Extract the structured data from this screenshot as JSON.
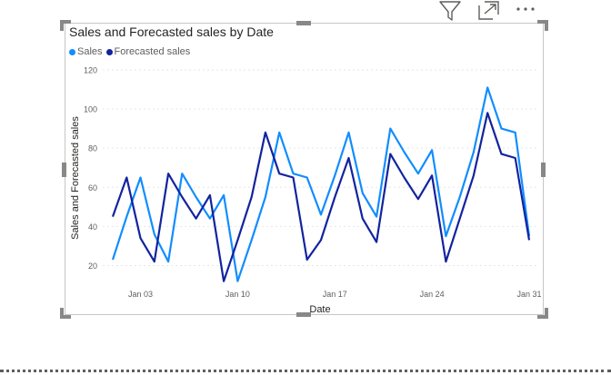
{
  "header": {
    "icons": [
      "filter-icon",
      "focus-mode-icon",
      "more-options-icon"
    ]
  },
  "colors": {
    "sales": "#118DFF",
    "forecast": "#12239E",
    "grid": "#e6e6e6",
    "axis_text": "#605e5c",
    "frame": "#c8c6c4",
    "handle": "#8a8886"
  },
  "chart_data": {
    "type": "line",
    "title": "Sales and Forecasted sales by Date",
    "xlabel": "Date",
    "ylabel": "Sales and Forecasted sales",
    "x": [
      "Jan 01",
      "Jan 02",
      "Jan 03",
      "Jan 04",
      "Jan 05",
      "Jan 06",
      "Jan 07",
      "Jan 08",
      "Jan 09",
      "Jan 10",
      "Jan 11",
      "Jan 12",
      "Jan 13",
      "Jan 14",
      "Jan 15",
      "Jan 16",
      "Jan 17",
      "Jan 18",
      "Jan 19",
      "Jan 20",
      "Jan 21",
      "Jan 22",
      "Jan 23",
      "Jan 24",
      "Jan 25",
      "Jan 26",
      "Jan 27",
      "Jan 28",
      "Jan 29",
      "Jan 30",
      "Jan 31"
    ],
    "x_ticks": [
      "Jan 03",
      "Jan 10",
      "Jan 17",
      "Jan 24",
      "Jan 31"
    ],
    "y_ticks": [
      20,
      40,
      60,
      80,
      100,
      120
    ],
    "ylim": [
      10,
      120
    ],
    "grid": true,
    "legend_position": "top-left",
    "series": [
      {
        "name": "Sales",
        "values": [
          23,
          45,
          65,
          36,
          22,
          67,
          55,
          44,
          56,
          12,
          33,
          55,
          88,
          67,
          65,
          46,
          66,
          88,
          57,
          45,
          90,
          78,
          67,
          79,
          35,
          55,
          78,
          111,
          90,
          88,
          35
        ]
      },
      {
        "name": "Forecasted sales",
        "values": [
          45,
          65,
          34,
          22,
          67,
          55,
          44,
          56,
          12,
          33,
          55,
          88,
          67,
          65,
          23,
          33,
          55,
          75,
          44,
          32,
          77,
          65,
          54,
          66,
          22,
          44,
          66,
          98,
          77,
          75,
          33
        ]
      }
    ]
  }
}
